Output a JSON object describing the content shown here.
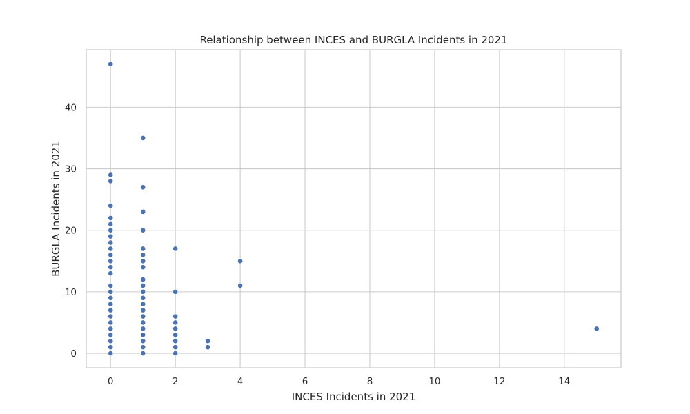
{
  "chart_data": {
    "type": "scatter",
    "title": "Relationship between INCES and BURGLA Incidents in 2021",
    "xlabel": "INCES Incidents in 2021",
    "ylabel": "BURGLA Incidents in 2021",
    "xlim": [
      -0.75,
      15.75
    ],
    "ylim": [
      -2.35,
      49.35
    ],
    "xticks": [
      0,
      2,
      4,
      6,
      8,
      10,
      12,
      14
    ],
    "yticks": [
      0,
      10,
      20,
      30,
      40
    ],
    "grid": true,
    "marker_color": "#4c72b0",
    "points": [
      [
        0,
        0
      ],
      [
        0,
        1
      ],
      [
        0,
        2
      ],
      [
        0,
        3
      ],
      [
        0,
        4
      ],
      [
        0,
        5
      ],
      [
        0,
        6
      ],
      [
        0,
        7
      ],
      [
        0,
        8
      ],
      [
        0,
        9
      ],
      [
        0,
        10
      ],
      [
        0,
        11
      ],
      [
        0,
        13
      ],
      [
        0,
        14
      ],
      [
        0,
        15
      ],
      [
        0,
        16
      ],
      [
        0,
        17
      ],
      [
        0,
        18
      ],
      [
        0,
        19
      ],
      [
        0,
        20
      ],
      [
        0,
        21
      ],
      [
        0,
        22
      ],
      [
        0,
        24
      ],
      [
        0,
        28
      ],
      [
        0,
        29
      ],
      [
        0,
        47
      ],
      [
        1,
        0
      ],
      [
        1,
        1
      ],
      [
        1,
        2
      ],
      [
        1,
        3
      ],
      [
        1,
        4
      ],
      [
        1,
        5
      ],
      [
        1,
        6
      ],
      [
        1,
        7
      ],
      [
        1,
        8
      ],
      [
        1,
        9
      ],
      [
        1,
        10
      ],
      [
        1,
        11
      ],
      [
        1,
        12
      ],
      [
        1,
        14
      ],
      [
        1,
        15
      ],
      [
        1,
        16
      ],
      [
        1,
        17
      ],
      [
        1,
        20
      ],
      [
        1,
        23
      ],
      [
        1,
        27
      ],
      [
        1,
        35
      ],
      [
        2,
        0
      ],
      [
        2,
        1
      ],
      [
        2,
        2
      ],
      [
        2,
        3
      ],
      [
        2,
        4
      ],
      [
        2,
        5
      ],
      [
        2,
        6
      ],
      [
        2,
        10
      ],
      [
        2,
        17
      ],
      [
        3,
        1
      ],
      [
        3,
        2
      ],
      [
        4,
        11
      ],
      [
        4,
        15
      ],
      [
        15,
        4
      ]
    ]
  }
}
